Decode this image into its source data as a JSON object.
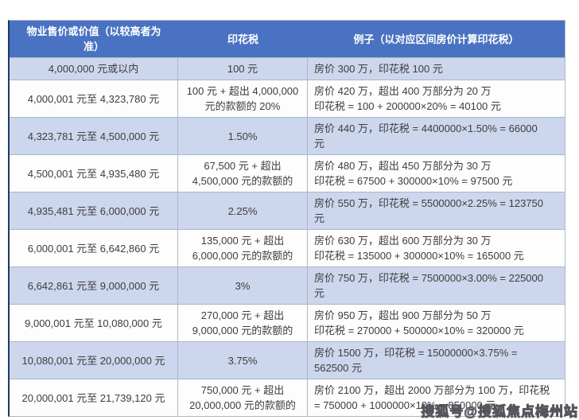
{
  "table": {
    "headers": [
      {
        "label": "物业售价或价值（以较高者为\n准）"
      },
      {
        "label": "印花税"
      },
      {
        "label": "例子（以对应区间房价计算印花税）"
      }
    ],
    "rows": [
      {
        "range": "4,000,000 元或以内",
        "duty": "100 元",
        "example": "房价 300 万，印花税 100 元"
      },
      {
        "range": "4,000,001 元至 4,323,780 元",
        "duty": "100 元 + 超出 4,000,000\n元的款额的 20%",
        "example": "房价 420 万，超出 400 万部分为 20 万\n印花税 = 100 + 200000×20% = 40100 元"
      },
      {
        "range": "4,323,781 元至 4,500,000 元",
        "duty": "1.50%",
        "example": "房价 440 万，印花税 = 4400000×1.50% = 66000\n元"
      },
      {
        "range": "4,500,001 元至 4,935,480 元",
        "duty": "67,500 元 + 超出\n4,500,000 元的款额的",
        "example": "房价 480 万，超出 450 万部分为 30 万\n印花税 = 67500 + 300000×10% = 97500 元"
      },
      {
        "range": "4,935,481 元至 6,000,000 元",
        "duty": "2.25%",
        "example": "房价 550 万，印花税 = 5500000×2.25% = 123750\n元"
      },
      {
        "range": "6,000,001 元至 6,642,860 元",
        "duty": "135,000 元 + 超出\n6,000,000 元的款额的",
        "example": "房价 630 万，超出 600 万部分为 30 万\n印花税 = 135000 + 300000×10% = 165000 元"
      },
      {
        "range": "6,642,861 元至 9,000,000 元",
        "duty": "3%",
        "example": "房价 750 万，印花税 = 7500000×3.00% = 225000\n元"
      },
      {
        "range": "9,000,001 元至 10,080,000 元",
        "duty": "270,000 元 + 超出\n9,000,000 元的款额的",
        "example": "房价 950 万，超出 900 万部分为 50 万\n印花税 = 270000 + 500000×10% = 320000 元"
      },
      {
        "range": "10,080,001 元至 20,000,000 元",
        "duty": "3.75%",
        "example": "房价 1500 万，印花税 = 15000000×3.75% =\n562500 元"
      },
      {
        "range": "20,000,001 元至 21,739,120 元",
        "duty": "750,000 元 + 超出\n20,000,000 元的款额的",
        "example": "房价 2100 万，超出 2000 万部分为 100 万，印花税\n= 750000 + 1000000×10% = 850000 元"
      }
    ]
  },
  "watermark": {
    "text": "搜狐号@搜狐焦点梅州站"
  },
  "colors": {
    "header_bg": "#4a72c2",
    "header_text": "#ffffff",
    "row_alt_bg": "#ccd6ec",
    "row_bg": "#fdfdfe",
    "grid_line": "#aeb6c6",
    "outer_border": "#1e3a66",
    "body_text": "#3d3d3d",
    "watermark_color": "#b9b9c2",
    "watermark_stroke": "#55555d"
  }
}
